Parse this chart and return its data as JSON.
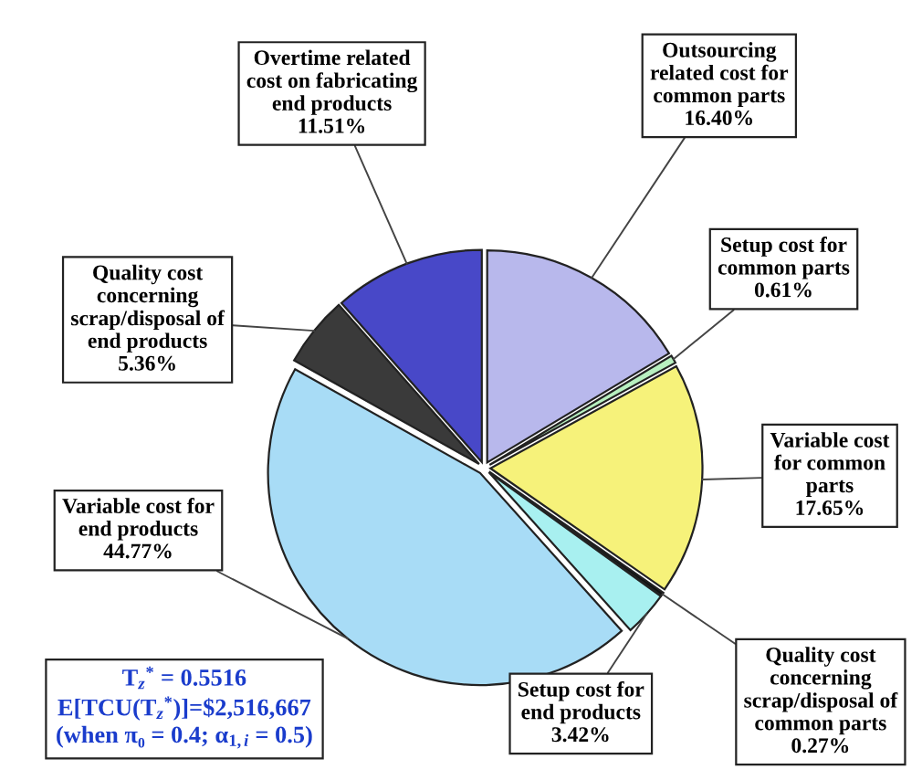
{
  "chart_data": {
    "type": "pie",
    "categories": [
      "Outsourcing\nrelated cost for\ncommon parts",
      "Setup cost for\ncommon parts",
      "Variable cost\nfor common\nparts",
      "Quality cost\nconcerning\nscrap/disposal of\ncommon parts",
      "Setup cost for\nend products",
      "Variable cost for\nend products",
      "Quality cost\nconcerning\nscrap/disposal of\nend products",
      "Overtime related\ncost on fabricating\nend products"
    ],
    "values": [
      16.4,
      0.61,
      17.65,
      0.27,
      3.42,
      44.77,
      5.36,
      11.51
    ],
    "value_labels": [
      "16.40%",
      "0.61%",
      "17.65%",
      "0.27%",
      "3.42%",
      "44.77%",
      "5.36%",
      "11.51%"
    ],
    "colors": [
      "#b8b8ec",
      "#b8f0c0",
      "#f6f27a",
      "#111111",
      "#a8f0f0",
      "#a8dcf6",
      "#3a3a3a",
      "#4848c8"
    ],
    "annotations": [
      "T$_{z}$$^{*}$ = 0.5516",
      "E[TCU(T$_{z}$$^{*}$)]=$2,516,667",
      "(when π₀ = 0.4; α$_{1,i}$ = 0.5)"
    ],
    "legend": false
  }
}
